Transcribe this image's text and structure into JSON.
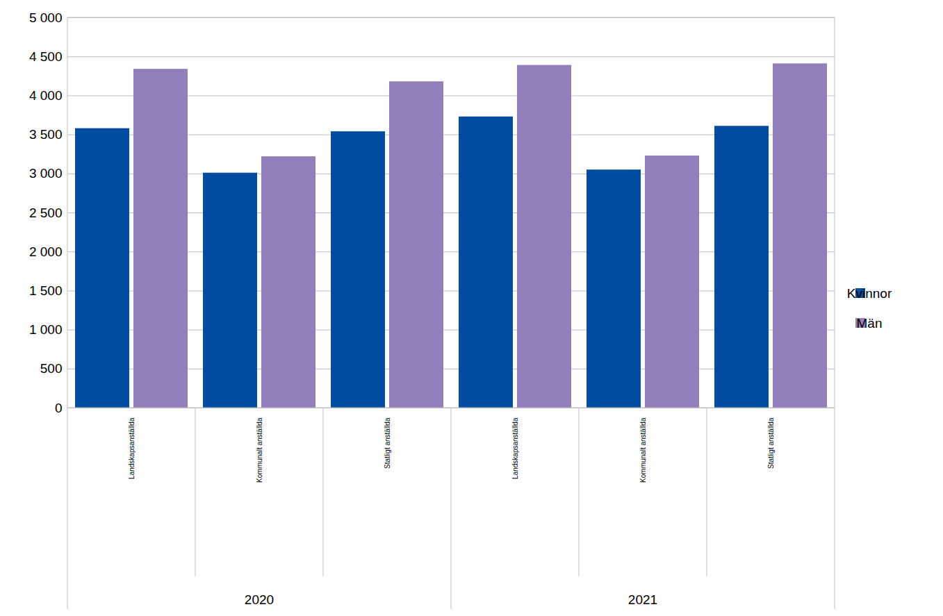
{
  "chart_data": {
    "type": "bar",
    "categories": [
      "Landskapsanställda",
      "Kommunalt anställda",
      "Statligt anställda",
      "Landskapsanställda",
      "Kommunalt anställda",
      "Statligt anställda"
    ],
    "category_groups": [
      "2020",
      "2020",
      "2020",
      "2021",
      "2021",
      "2021"
    ],
    "series": [
      {
        "name": "Kvinnor",
        "color": "#024da1",
        "values": [
          3580,
          3010,
          3540,
          3730,
          3050,
          3610
        ]
      },
      {
        "name": "Män",
        "color": "#927fba",
        "values": [
          4340,
          3220,
          4180,
          4390,
          3230,
          4410
        ]
      }
    ],
    "ylim": [
      0,
      5000
    ],
    "yticks": [
      0,
      500,
      {
        "value": 1000,
        "label": "1 000"
      },
      {
        "value": 1500,
        "label": "1 500"
      },
      {
        "value": 2000,
        "label": "2 000"
      },
      {
        "value": 2500,
        "label": "2 500"
      },
      {
        "value": 3000,
        "label": "3 000"
      },
      {
        "value": 3500,
        "label": "3 500"
      },
      {
        "value": 4000,
        "label": "4 000"
      },
      {
        "value": 4500,
        "label": "4 500"
      },
      {
        "value": 5000,
        "label": "5 000"
      }
    ],
    "grid": true,
    "legend": "right"
  }
}
